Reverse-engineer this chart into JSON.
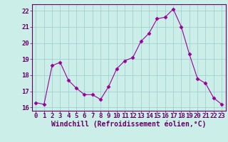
{
  "hours": [
    0,
    1,
    2,
    3,
    4,
    5,
    6,
    7,
    8,
    9,
    10,
    11,
    12,
    13,
    14,
    15,
    16,
    17,
    18,
    19,
    20,
    21,
    22,
    23
  ],
  "values": [
    16.3,
    16.2,
    18.6,
    18.8,
    17.7,
    17.2,
    16.8,
    16.8,
    16.5,
    17.3,
    18.4,
    18.9,
    19.1,
    20.1,
    20.6,
    21.5,
    21.6,
    22.1,
    21.0,
    19.3,
    17.8,
    17.5,
    16.6,
    16.2
  ],
  "line_color": "#990099",
  "marker": "D",
  "marker_size": 2.5,
  "bg_color": "#cceee8",
  "grid_color": "#99cccc",
  "xlabel": "Windchill (Refroidissement éolien,°C)",
  "xlim": [
    -0.5,
    23.5
  ],
  "ylim": [
    15.8,
    22.4
  ],
  "yticks": [
    16,
    17,
    18,
    19,
    20,
    21,
    22
  ],
  "xticks": [
    0,
    1,
    2,
    3,
    4,
    5,
    6,
    7,
    8,
    9,
    10,
    11,
    12,
    13,
    14,
    15,
    16,
    17,
    18,
    19,
    20,
    21,
    22,
    23
  ],
  "xlabel_fontsize": 7,
  "tick_fontsize": 6.5,
  "tick_color": "#660066",
  "label_color": "#660066",
  "spine_color": "#660066"
}
